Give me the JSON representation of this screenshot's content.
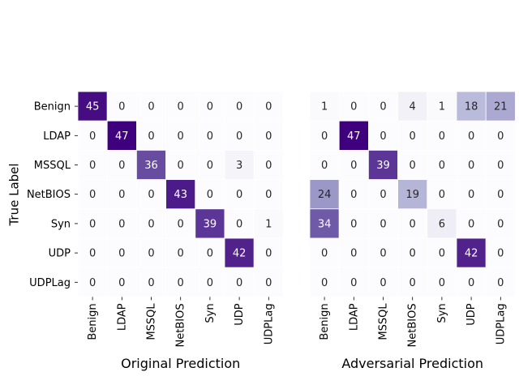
{
  "chart_data": [
    {
      "type": "heatmap",
      "xlabel": "Original Prediction",
      "ylabel": "True Label",
      "rows": [
        "Benign",
        "LDAP",
        "MSSQL",
        "NetBIOS",
        "Syn",
        "UDP",
        "UDPLag"
      ],
      "cols": [
        "Benign",
        "LDAP",
        "MSSQL",
        "NetBIOS",
        "Syn",
        "UDP",
        "UDPLag"
      ],
      "values": [
        [
          45,
          0,
          0,
          0,
          0,
          0,
          0
        ],
        [
          0,
          47,
          0,
          0,
          0,
          0,
          0
        ],
        [
          0,
          0,
          36,
          0,
          0,
          3,
          0
        ],
        [
          0,
          0,
          0,
          43,
          0,
          0,
          0
        ],
        [
          0,
          0,
          0,
          0,
          39,
          0,
          1
        ],
        [
          0,
          0,
          0,
          0,
          0,
          42,
          0
        ],
        [
          0,
          0,
          0,
          0,
          0,
          0,
          0
        ]
      ],
      "vmax": 47,
      "colormap": "Purples",
      "cell_separator": "#ffffff"
    },
    {
      "type": "heatmap",
      "xlabel": "Adversarial Prediction",
      "ylabel": "",
      "rows": [
        "Benign",
        "LDAP",
        "MSSQL",
        "NetBIOS",
        "Syn",
        "UDP",
        "UDPLag"
      ],
      "cols": [
        "Benign",
        "LDAP",
        "MSSQL",
        "NetBIOS",
        "Syn",
        "UDP",
        "UDPLag"
      ],
      "values": [
        [
          1,
          0,
          0,
          4,
          1,
          18,
          21
        ],
        [
          0,
          47,
          0,
          0,
          0,
          0,
          0
        ],
        [
          0,
          0,
          39,
          0,
          0,
          0,
          0
        ],
        [
          24,
          0,
          0,
          19,
          0,
          0,
          0
        ],
        [
          34,
          0,
          0,
          0,
          6,
          0,
          0
        ],
        [
          0,
          0,
          0,
          0,
          0,
          42,
          0
        ],
        [
          0,
          0,
          0,
          0,
          0,
          0,
          0
        ]
      ],
      "vmax": 47,
      "colormap": "Purples",
      "cell_separator": "#ffffff"
    }
  ]
}
